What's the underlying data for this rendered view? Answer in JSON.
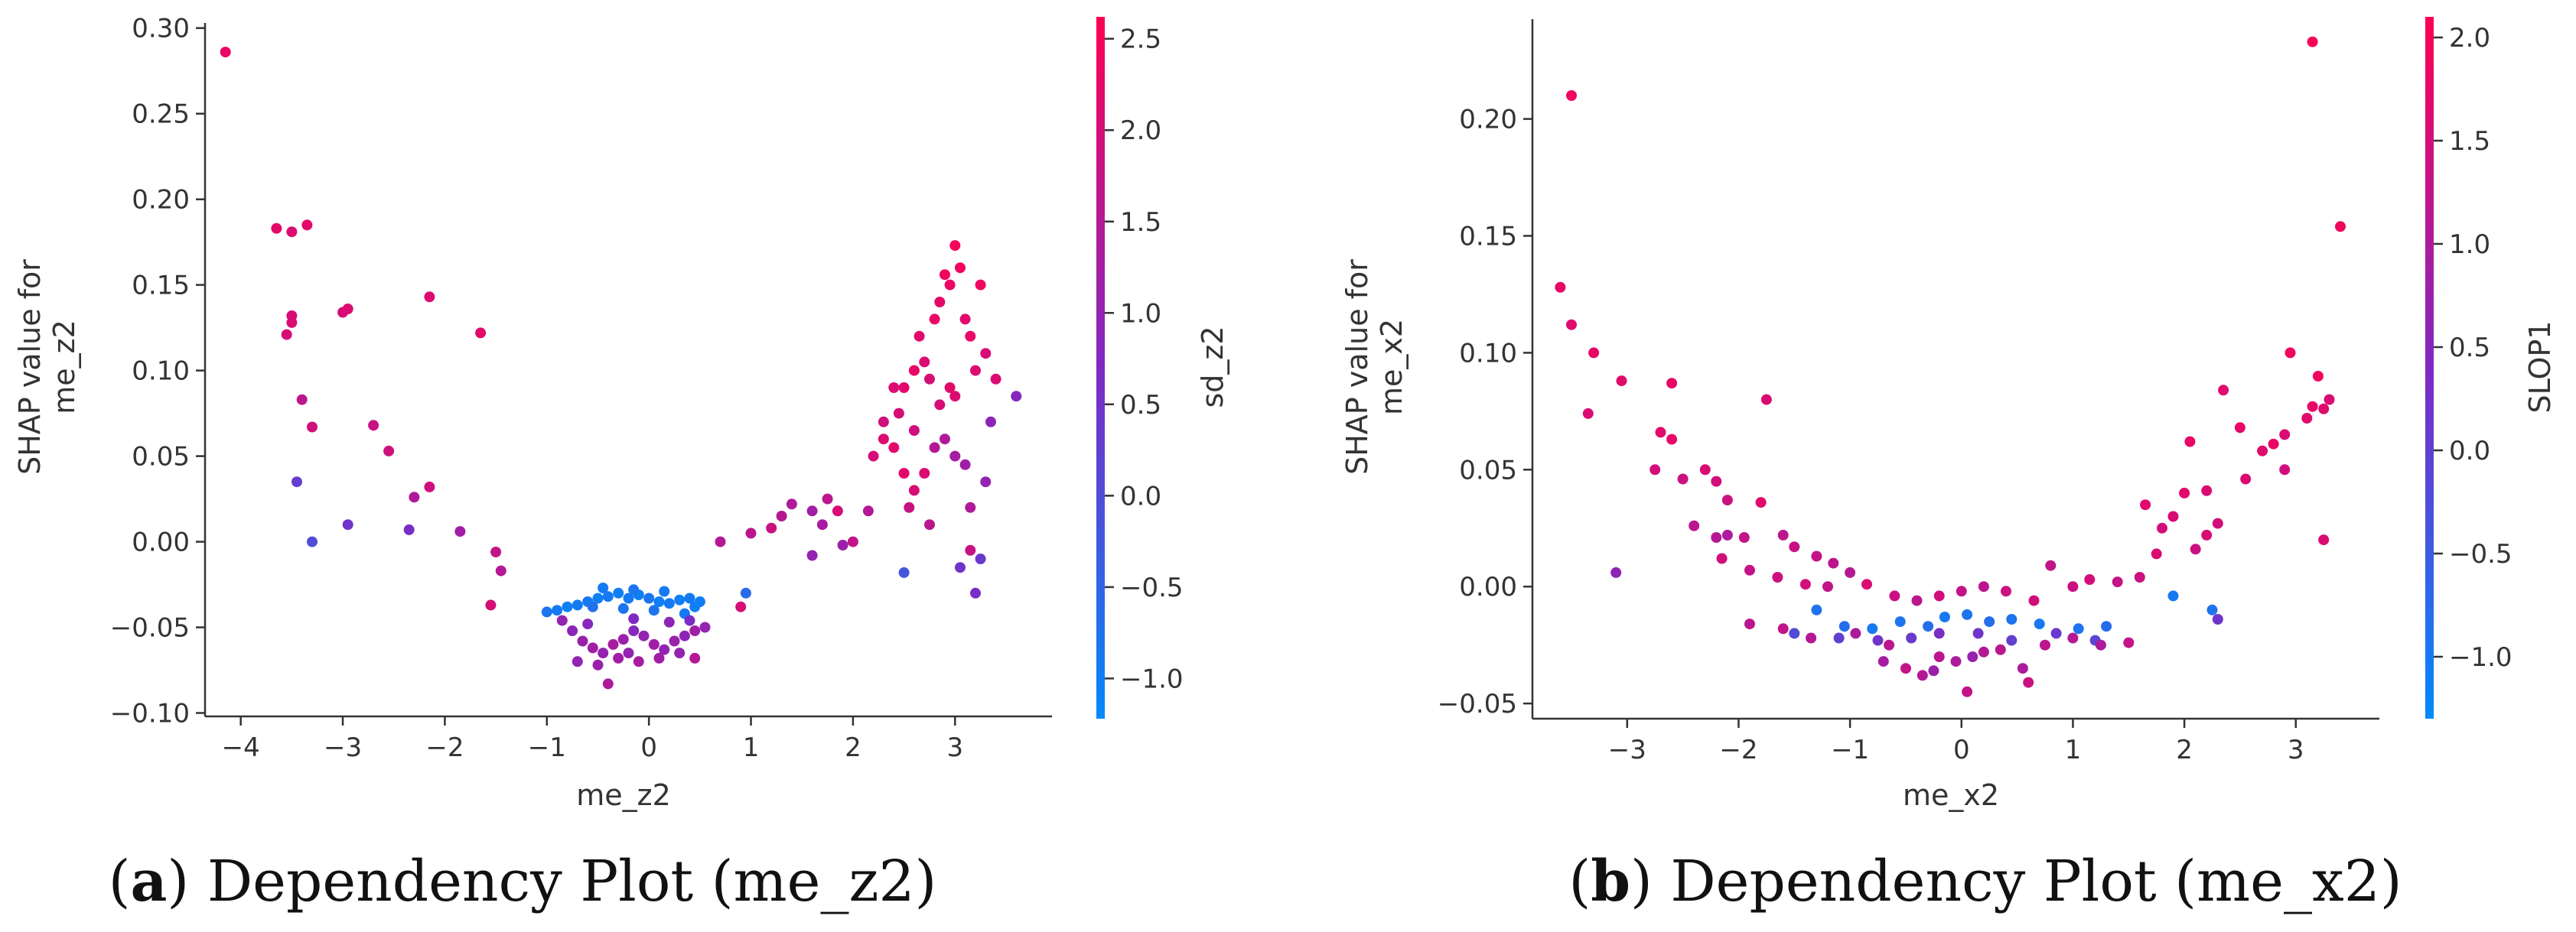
{
  "chart_data": [
    {
      "type": "scatter",
      "caption_letter": "a",
      "caption_open": "(",
      "caption_close": ")",
      "caption_text": " Dependency Plot (me_z2)",
      "xlabel": "me_z2",
      "ylabel_line1": "SHAP value for",
      "ylabel_line2": "me_z2",
      "xlim": [
        -4.35,
        3.95
      ],
      "ylim": [
        -0.102,
        0.303
      ],
      "xticks": [
        -4,
        -3,
        -2,
        -1,
        0,
        1,
        2,
        3
      ],
      "xtick_labels": [
        "−4",
        "−3",
        "−2",
        "−1",
        "0",
        "1",
        "2",
        "3"
      ],
      "yticks": [
        -0.1,
        -0.05,
        0.0,
        0.05,
        0.1,
        0.15,
        0.2,
        0.25,
        0.3
      ],
      "ytick_labels": [
        "−0.10",
        "−0.05",
        "0.00",
        "0.05",
        "0.10",
        "0.15",
        "0.20",
        "0.25",
        "0.30"
      ],
      "colorbar": {
        "label": "sd_z2",
        "range": [
          -1.22,
          2.62
        ],
        "ticks": [
          -1.0,
          -0.5,
          0.0,
          0.5,
          1.0,
          1.5,
          2.0,
          2.5
        ],
        "tick_labels": [
          "−1.0",
          "−0.5",
          "0.0",
          "0.5",
          "1.0",
          "1.5",
          "2.0",
          "2.5"
        ]
      },
      "points": [
        [
          -4.15,
          0.286,
          2.3
        ],
        [
          -3.65,
          0.183,
          2.2
        ],
        [
          -3.5,
          0.181,
          2.1
        ],
        [
          -3.35,
          0.185,
          2.2
        ],
        [
          -3.55,
          0.121,
          2.0
        ],
        [
          -3.5,
          0.132,
          2.0
        ],
        [
          -3.5,
          0.128,
          2.1
        ],
        [
          -3.0,
          0.134,
          2.0
        ],
        [
          -2.95,
          0.136,
          2.1
        ],
        [
          -2.15,
          0.143,
          2.1
        ],
        [
          -1.65,
          0.122,
          2.2
        ],
        [
          -3.4,
          0.083,
          1.6
        ],
        [
          -3.3,
          0.067,
          1.9
        ],
        [
          -2.7,
          0.068,
          1.8
        ],
        [
          -2.55,
          0.053,
          1.9
        ],
        [
          -2.3,
          0.026,
          1.4
        ],
        [
          -2.15,
          0.032,
          1.9
        ],
        [
          -1.85,
          0.006,
          1.2
        ],
        [
          -1.5,
          -0.006,
          1.7
        ],
        [
          -1.45,
          -0.017,
          1.5
        ],
        [
          -1.55,
          -0.037,
          2.0
        ],
        [
          -3.45,
          0.035,
          0.3
        ],
        [
          -3.3,
          0.0,
          0.0
        ],
        [
          -2.95,
          0.01,
          0.5
        ],
        [
          -2.35,
          0.007,
          0.6
        ],
        [
          -1.0,
          -0.041,
          -0.8
        ],
        [
          -0.9,
          -0.04,
          -0.9
        ],
        [
          -0.8,
          -0.038,
          -1.0
        ],
        [
          -0.7,
          -0.037,
          -0.9
        ],
        [
          -0.6,
          -0.035,
          -0.9
        ],
        [
          -0.5,
          -0.033,
          -1.0
        ],
        [
          -0.4,
          -0.032,
          -0.9
        ],
        [
          -0.3,
          -0.03,
          -1.0
        ],
        [
          -0.2,
          -0.033,
          -0.9
        ],
        [
          -0.1,
          -0.031,
          -1.0
        ],
        [
          0.0,
          -0.033,
          -0.8
        ],
        [
          0.1,
          -0.035,
          -1.0
        ],
        [
          0.2,
          -0.036,
          -0.9
        ],
        [
          0.3,
          -0.034,
          -1.0
        ],
        [
          0.4,
          -0.033,
          -0.9
        ],
        [
          0.5,
          -0.035,
          -1.0
        ],
        [
          -0.55,
          -0.038,
          -0.7
        ],
        [
          -0.25,
          -0.039,
          -0.8
        ],
        [
          0.05,
          -0.04,
          -0.8
        ],
        [
          0.35,
          -0.042,
          -0.9
        ],
        [
          0.45,
          -0.038,
          -1.0
        ],
        [
          -0.45,
          -0.027,
          -0.9
        ],
        [
          -0.15,
          -0.028,
          -0.8
        ],
        [
          0.15,
          -0.029,
          -0.9
        ],
        [
          -0.85,
          -0.046,
          1.0
        ],
        [
          -0.75,
          -0.052,
          0.9
        ],
        [
          -0.65,
          -0.058,
          1.1
        ],
        [
          -0.55,
          -0.062,
          1.2
        ],
        [
          -0.45,
          -0.065,
          1.0
        ],
        [
          -0.35,
          -0.06,
          1.3
        ],
        [
          -0.25,
          -0.057,
          1.1
        ],
        [
          -0.15,
          -0.052,
          0.8
        ],
        [
          -0.05,
          -0.055,
          1.0
        ],
        [
          0.05,
          -0.06,
          1.2
        ],
        [
          0.15,
          -0.063,
          1.0
        ],
        [
          0.25,
          -0.058,
          1.1
        ],
        [
          0.35,
          -0.055,
          0.9
        ],
        [
          0.45,
          -0.052,
          1.2
        ],
        [
          0.55,
          -0.05,
          1.0
        ],
        [
          -0.7,
          -0.07,
          1.0
        ],
        [
          -0.5,
          -0.072,
          1.1
        ],
        [
          -0.4,
          -0.083,
          1.4
        ],
        [
          -0.3,
          -0.068,
          1.2
        ],
        [
          -0.2,
          -0.065,
          1.0
        ],
        [
          -0.1,
          -0.07,
          1.3
        ],
        [
          0.1,
          -0.068,
          1.2
        ],
        [
          0.3,
          -0.065,
          1.0
        ],
        [
          0.45,
          -0.068,
          1.5
        ],
        [
          -0.6,
          -0.048,
          0.8
        ],
        [
          -0.15,
          -0.045,
          0.7
        ],
        [
          0.2,
          -0.047,
          0.9
        ],
        [
          0.4,
          -0.046,
          0.6
        ],
        [
          0.9,
          -0.038,
          2.0
        ],
        [
          0.95,
          -0.03,
          -0.6
        ],
        [
          0.7,
          0.0,
          1.5
        ],
        [
          1.0,
          0.005,
          1.6
        ],
        [
          1.2,
          0.008,
          1.8
        ],
        [
          1.3,
          0.015,
          1.5
        ],
        [
          1.4,
          0.022,
          1.4
        ],
        [
          1.6,
          0.018,
          1.2
        ],
        [
          1.75,
          0.025,
          1.6
        ],
        [
          1.6,
          -0.008,
          1.0
        ],
        [
          1.9,
          -0.002,
          1.1
        ],
        [
          1.7,
          0.01,
          1.3
        ],
        [
          2.0,
          0.0,
          1.7
        ],
        [
          2.15,
          0.018,
          1.5
        ],
        [
          1.85,
          0.018,
          2.0
        ],
        [
          2.2,
          0.05,
          2.0
        ],
        [
          2.3,
          0.06,
          2.1
        ],
        [
          2.4,
          0.055,
          2.2
        ],
        [
          2.45,
          0.075,
          2.0
        ],
        [
          2.5,
          0.09,
          2.2
        ],
        [
          2.6,
          0.1,
          2.3
        ],
        [
          2.65,
          0.12,
          2.2
        ],
        [
          2.7,
          0.105,
          2.1
        ],
        [
          2.75,
          0.095,
          2.0
        ],
        [
          2.8,
          0.13,
          2.3
        ],
        [
          2.85,
          0.14,
          2.2
        ],
        [
          2.9,
          0.156,
          2.4
        ],
        [
          2.95,
          0.15,
          2.3
        ],
        [
          3.0,
          0.173,
          2.5
        ],
        [
          3.05,
          0.16,
          2.4
        ],
        [
          3.1,
          0.13,
          2.2
        ],
        [
          3.15,
          0.12,
          2.3
        ],
        [
          3.2,
          0.1,
          2.1
        ],
        [
          3.25,
          0.15,
          2.4
        ],
        [
          3.3,
          0.11,
          2.0
        ],
        [
          3.4,
          0.095,
          2.1
        ],
        [
          2.85,
          0.08,
          2.0
        ],
        [
          2.95,
          0.09,
          2.2
        ],
        [
          3.0,
          0.085,
          2.1
        ],
        [
          2.5,
          0.04,
          2.2
        ],
        [
          2.6,
          0.03,
          2.0
        ],
        [
          2.7,
          0.04,
          2.1
        ],
        [
          2.8,
          0.055,
          1.5
        ],
        [
          2.9,
          0.06,
          1.4
        ],
        [
          3.0,
          0.05,
          1.3
        ],
        [
          3.1,
          0.045,
          1.2
        ],
        [
          3.15,
          0.02,
          1.4
        ],
        [
          3.3,
          0.035,
          1.0
        ],
        [
          3.35,
          0.07,
          0.9
        ],
        [
          3.6,
          0.085,
          0.8
        ],
        [
          2.55,
          0.02,
          1.8
        ],
        [
          2.75,
          0.01,
          1.6
        ],
        [
          3.05,
          -0.015,
          0.5
        ],
        [
          3.2,
          -0.03,
          0.6
        ],
        [
          3.25,
          -0.01,
          0.4
        ],
        [
          2.5,
          -0.018,
          -0.2
        ],
        [
          3.15,
          -0.005,
          1.8
        ],
        [
          2.3,
          0.07,
          1.9
        ],
        [
          2.4,
          0.09,
          2.1
        ],
        [
          2.6,
          0.065,
          1.9
        ]
      ]
    },
    {
      "type": "scatter",
      "caption_letter": "b",
      "caption_open": "(",
      "caption_close": ")",
      "caption_text": " Dependency Plot (me_x2)",
      "xlabel": "me_x2",
      "ylabel_line1": "SHAP value for",
      "ylabel_line2": "me_x2",
      "xlim": [
        -3.85,
        3.75
      ],
      "ylim": [
        -0.0565,
        0.2427
      ],
      "xticks": [
        -3,
        -2,
        -1,
        0,
        1,
        2,
        3
      ],
      "xtick_labels": [
        "−3",
        "−2",
        "−1",
        "0",
        "1",
        "2",
        "3"
      ],
      "yticks": [
        -0.05,
        0.0,
        0.05,
        0.1,
        0.15,
        0.2
      ],
      "ytick_labels": [
        "−0.05",
        "0.00",
        "0.05",
        "0.10",
        "0.15",
        "0.20"
      ],
      "colorbar": {
        "label": "SLOP1",
        "range": [
          -1.3,
          2.1
        ],
        "ticks": [
          -1.0,
          -0.5,
          0.0,
          0.5,
          1.0,
          1.5,
          2.0
        ],
        "tick_labels": [
          "−1.0",
          "−0.5",
          "0.0",
          "0.5",
          "1.0",
          "1.5",
          "2.0"
        ]
      },
      "points": [
        [
          -3.5,
          0.21,
          1.9
        ],
        [
          -3.6,
          0.128,
          1.8
        ],
        [
          -3.5,
          0.112,
          1.7
        ],
        [
          -3.3,
          0.1,
          1.8
        ],
        [
          -3.35,
          0.074,
          1.6
        ],
        [
          -3.05,
          0.088,
          1.7
        ],
        [
          -2.6,
          0.087,
          1.8
        ],
        [
          -1.75,
          0.08,
          1.6
        ],
        [
          -2.7,
          0.066,
          1.7
        ],
        [
          -2.6,
          0.063,
          1.8
        ],
        [
          -2.75,
          0.05,
          1.5
        ],
        [
          -2.5,
          0.046,
          1.4
        ],
        [
          -2.3,
          0.05,
          1.6
        ],
        [
          -2.2,
          0.045,
          1.5
        ],
        [
          -2.1,
          0.037,
          1.4
        ],
        [
          -1.8,
          0.036,
          1.7
        ],
        [
          -2.4,
          0.026,
          1.2
        ],
        [
          -2.2,
          0.021,
          1.1
        ],
        [
          -2.1,
          0.022,
          1.0
        ],
        [
          -1.95,
          0.021,
          1.3
        ],
        [
          -1.6,
          0.022,
          1.2
        ],
        [
          -1.5,
          0.017,
          1.4
        ],
        [
          -1.3,
          0.013,
          1.3
        ],
        [
          -1.15,
          0.01,
          1.2
        ],
        [
          -1.0,
          0.006,
          1.1
        ],
        [
          -2.15,
          0.012,
          1.5
        ],
        [
          -1.9,
          0.007,
          1.3
        ],
        [
          -1.65,
          0.004,
          1.4
        ],
        [
          -1.4,
          0.001,
          1.5
        ],
        [
          -1.2,
          0.0,
          1.3
        ],
        [
          -0.85,
          0.001,
          1.6
        ],
        [
          -0.6,
          -0.004,
          1.4
        ],
        [
          -0.4,
          -0.006,
          1.2
        ],
        [
          -0.2,
          -0.004,
          1.5
        ],
        [
          0.0,
          -0.002,
          1.3
        ],
        [
          0.2,
          0.0,
          1.2
        ],
        [
          0.4,
          -0.002,
          1.4
        ],
        [
          0.65,
          -0.006,
          1.5
        ],
        [
          0.8,
          0.009,
          1.3
        ],
        [
          1.0,
          0.0,
          1.4
        ],
        [
          1.15,
          0.003,
          1.5
        ],
        [
          1.4,
          0.002,
          1.3
        ],
        [
          1.6,
          0.004,
          1.4
        ],
        [
          1.75,
          0.014,
          1.6
        ],
        [
          1.65,
          0.035,
          1.7
        ],
        [
          1.8,
          0.025,
          1.5
        ],
        [
          1.9,
          0.03,
          1.6
        ],
        [
          2.0,
          0.04,
          1.7
        ],
        [
          2.05,
          0.062,
          1.8
        ],
        [
          2.2,
          0.041,
          1.6
        ],
        [
          2.3,
          0.027,
          1.5
        ],
        [
          2.1,
          0.016,
          1.4
        ],
        [
          2.2,
          0.022,
          1.6
        ],
        [
          2.35,
          0.084,
          1.7
        ],
        [
          2.5,
          0.068,
          1.8
        ],
        [
          2.55,
          0.046,
          1.6
        ],
        [
          2.7,
          0.058,
          1.7
        ],
        [
          2.8,
          0.061,
          1.8
        ],
        [
          2.9,
          0.065,
          1.6
        ],
        [
          2.95,
          0.1,
          1.9
        ],
        [
          2.9,
          0.05,
          1.5
        ],
        [
          3.1,
          0.072,
          1.7
        ],
        [
          3.15,
          0.077,
          1.8
        ],
        [
          3.2,
          0.09,
          1.9
        ],
        [
          3.25,
          0.076,
          1.7
        ],
        [
          3.3,
          0.08,
          1.6
        ],
        [
          3.15,
          0.233,
          2.0
        ],
        [
          3.4,
          0.154,
          1.9
        ],
        [
          3.25,
          0.02,
          1.6
        ],
        [
          -1.3,
          -0.01,
          -0.9
        ],
        [
          -1.05,
          -0.017,
          -0.8
        ],
        [
          -0.8,
          -0.018,
          -1.0
        ],
        [
          -0.55,
          -0.015,
          -0.9
        ],
        [
          -0.3,
          -0.017,
          -0.8
        ],
        [
          -0.15,
          -0.013,
          -1.0
        ],
        [
          0.05,
          -0.012,
          -0.9
        ],
        [
          0.25,
          -0.015,
          -0.8
        ],
        [
          0.45,
          -0.014,
          -0.9
        ],
        [
          0.7,
          -0.016,
          -1.0
        ],
        [
          1.05,
          -0.018,
          -0.9
        ],
        [
          1.3,
          -0.017,
          -0.8
        ],
        [
          1.9,
          -0.004,
          -1.0
        ],
        [
          2.25,
          -0.01,
          -0.9
        ],
        [
          -1.5,
          -0.02,
          -0.2
        ],
        [
          -1.1,
          -0.022,
          0.0
        ],
        [
          -0.75,
          -0.023,
          0.2
        ],
        [
          -0.45,
          -0.022,
          0.1
        ],
        [
          -0.2,
          -0.02,
          0.3
        ],
        [
          0.15,
          -0.02,
          0.2
        ],
        [
          0.45,
          -0.023,
          0.0
        ],
        [
          0.85,
          -0.02,
          0.1
        ],
        [
          1.2,
          -0.023,
          -0.1
        ],
        [
          2.3,
          -0.014,
          0.2
        ],
        [
          -1.9,
          -0.016,
          1.2
        ],
        [
          -1.6,
          -0.018,
          1.3
        ],
        [
          -1.35,
          -0.022,
          1.1
        ],
        [
          -0.95,
          -0.02,
          1.0
        ],
        [
          -0.65,
          -0.025,
          1.2
        ],
        [
          -0.5,
          -0.035,
          1.3
        ],
        [
          -0.35,
          -0.038,
          1.1
        ],
        [
          -0.2,
          -0.03,
          1.2
        ],
        [
          -0.05,
          -0.032,
          1.0
        ],
        [
          0.05,
          -0.045,
          1.3
        ],
        [
          0.2,
          -0.028,
          1.1
        ],
        [
          0.35,
          -0.027,
          1.2
        ],
        [
          0.55,
          -0.035,
          1.0
        ],
        [
          0.6,
          -0.041,
          1.4
        ],
        [
          0.75,
          -0.025,
          1.2
        ],
        [
          1.0,
          -0.022,
          1.1
        ],
        [
          1.25,
          -0.025,
          1.0
        ],
        [
          1.5,
          -0.024,
          1.3
        ],
        [
          -3.1,
          0.006,
          0.6
        ],
        [
          -0.7,
          -0.032,
          0.9
        ],
        [
          -0.25,
          -0.036,
          0.8
        ],
        [
          0.1,
          -0.03,
          0.7
        ]
      ]
    }
  ]
}
